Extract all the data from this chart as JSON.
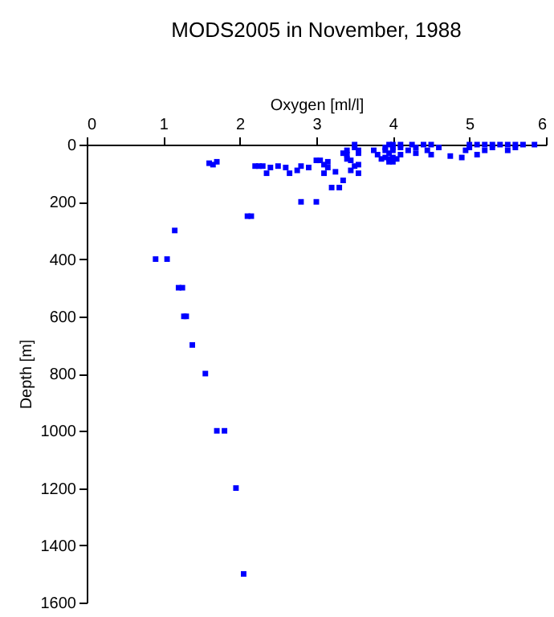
{
  "chart_data": {
    "type": "scatter",
    "title": "MODS2005 in November, 1988",
    "xlabel": "Oxygen [ml/l]",
    "ylabel": "Depth [m]",
    "x": [
      1.6,
      1.65,
      1.7,
      2.2,
      2.25,
      2.5,
      2.6,
      2.8,
      2.9,
      3.1,
      3.15,
      3.5,
      3.55,
      2.35,
      2.65,
      2.75,
      3.1,
      3.25,
      3.45,
      3.55,
      3.35,
      3.2,
      3.3,
      3.0,
      3.05,
      3.15,
      3.4,
      3.45,
      2.3,
      2.4,
      3.85,
      3.35,
      3.4,
      3.55,
      3.8,
      3.95,
      4.1,
      4.3,
      4.5,
      4.75,
      4.9,
      5.1,
      3.4,
      3.55,
      3.75,
      3.9,
      4.0,
      4.2,
      4.45,
      4.95,
      5.2,
      5.5,
      3.5,
      3.9,
      4.0,
      4.1,
      4.3,
      4.6,
      5.0,
      5.3,
      5.6,
      3.5,
      3.95,
      4.0,
      4.1,
      4.25,
      4.4,
      4.5,
      5.0,
      5.1,
      5.2,
      5.3,
      5.4,
      5.5,
      5.6,
      5.7,
      5.85,
      3.9,
      3.95,
      4.0,
      4.05,
      3.95,
      4.0,
      2.1,
      2.15,
      2.8,
      3.0,
      1.15,
      0.9,
      1.05,
      1.2,
      1.25,
      1.27,
      1.3,
      1.38,
      1.55,
      1.7,
      1.8,
      1.95,
      2.05
    ],
    "values": [
      65,
      70,
      60,
      75,
      75,
      75,
      80,
      75,
      80,
      70,
      80,
      75,
      70,
      100,
      100,
      90,
      100,
      95,
      90,
      100,
      125,
      150,
      150,
      55,
      55,
      60,
      50,
      55,
      75,
      80,
      50,
      30,
      35,
      30,
      35,
      30,
      35,
      30,
      35,
      40,
      45,
      35,
      20,
      20,
      20,
      20,
      20,
      20,
      20,
      20,
      20,
      20,
      10,
      10,
      10,
      10,
      10,
      10,
      10,
      10,
      10,
      0,
      0,
      0,
      0,
      0,
      0,
      0,
      0,
      0,
      0,
      0,
      0,
      0,
      0,
      0,
      0,
      45,
      50,
      45,
      50,
      60,
      60,
      250,
      250,
      200,
      200,
      300,
      400,
      400,
      500,
      500,
      600,
      600,
      700,
      800,
      1000,
      1000,
      1200,
      1500
    ],
    "color": "#0000ff",
    "marker": "square",
    "xlim": [
      0,
      6
    ],
    "xticks": [
      0,
      1,
      2,
      3,
      4,
      5,
      6
    ],
    "ylim": [
      1600,
      0
    ],
    "yticks": [
      0,
      200,
      400,
      600,
      800,
      1000,
      1200,
      1400,
      1600
    ],
    "grid": false
  }
}
